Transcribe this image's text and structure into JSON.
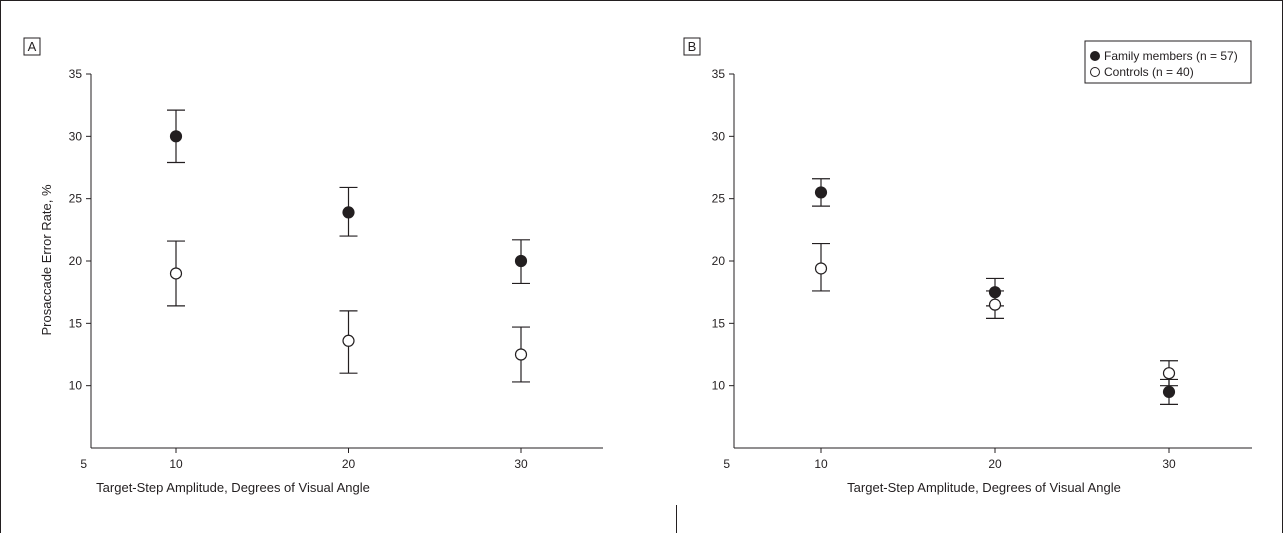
{
  "chart_data": [
    {
      "type": "scatter",
      "panel_label": "A",
      "xlabel": "Target-Step Amplitude, Degrees of Visual Angle",
      "ylabel": "Prosaccade Error Rate, %",
      "xlim": [
        5,
        35
      ],
      "ylim": [
        5,
        35
      ],
      "xticks": [
        5,
        10,
        20,
        30
      ],
      "yticks": [
        10,
        15,
        20,
        25,
        30,
        35
      ],
      "error_bars": true,
      "series": [
        {
          "name": "Family members (n = 57)",
          "marker": "filled-circle",
          "x": [
            10,
            20,
            30
          ],
          "y": [
            30,
            23.9,
            20
          ],
          "err_low": [
            27.9,
            22,
            18.2
          ],
          "err_high": [
            32.1,
            25.9,
            21.7
          ]
        },
        {
          "name": "Controls (n = 40)",
          "marker": "open-circle",
          "x": [
            10,
            20,
            30
          ],
          "y": [
            19,
            13.6,
            12.5
          ],
          "err_low": [
            16.4,
            11,
            10.3
          ],
          "err_high": [
            21.6,
            16,
            14.7
          ]
        }
      ]
    },
    {
      "type": "scatter",
      "panel_label": "B",
      "xlabel": "Target-Step Amplitude, Degrees of Visual Angle",
      "ylabel": "",
      "xlim": [
        5,
        35
      ],
      "ylim": [
        5,
        35
      ],
      "xticks": [
        5,
        10,
        20,
        30
      ],
      "yticks": [
        10,
        15,
        20,
        25,
        30,
        35
      ],
      "error_bars": true,
      "legend_position": "top-right",
      "legend": [
        "Family members (n = 57)",
        "Controls (n = 40)"
      ],
      "series": [
        {
          "name": "Family members (n = 57)",
          "marker": "filled-circle",
          "x": [
            10,
            20,
            30
          ],
          "y": [
            25.5,
            17.5,
            9.5
          ],
          "err_low": [
            24.4,
            16.4,
            8.5
          ],
          "err_high": [
            26.6,
            18.6,
            10.5
          ]
        },
        {
          "name": "Controls (n = 40)",
          "marker": "open-circle",
          "x": [
            10,
            20,
            30
          ],
          "y": [
            19.4,
            16.5,
            11
          ],
          "err_low": [
            17.6,
            15.4,
            10
          ],
          "err_high": [
            21.4,
            17.6,
            12
          ]
        }
      ]
    }
  ],
  "colors": {
    "ink": "#231f20",
    "background": "#ffffff"
  }
}
